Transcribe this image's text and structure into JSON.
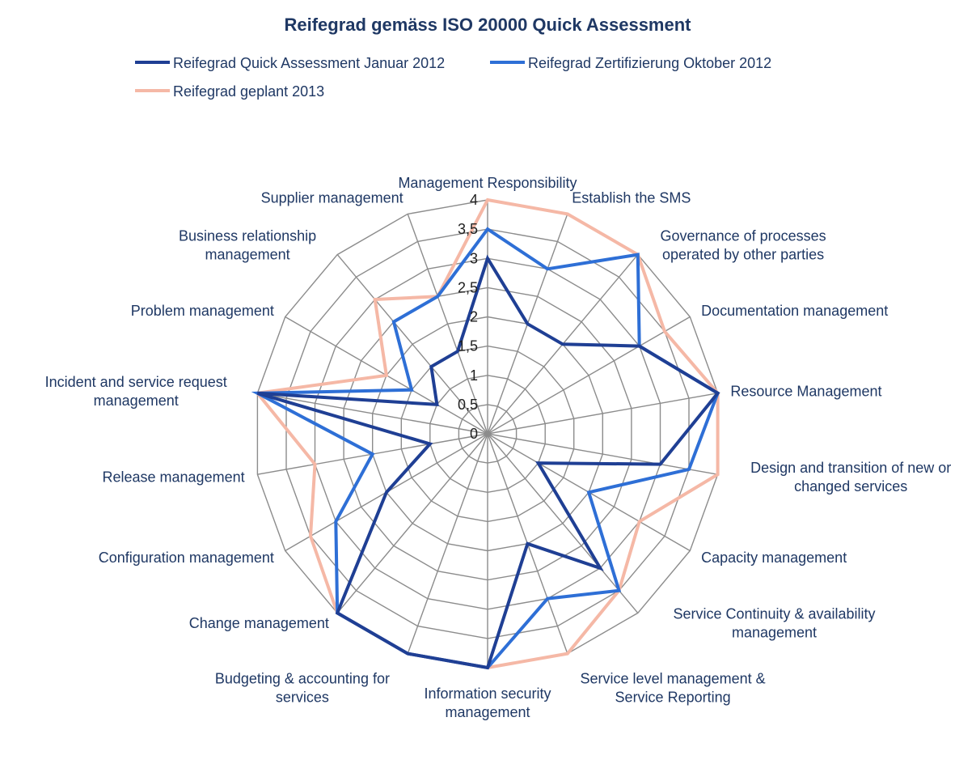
{
  "chart_data": {
    "type": "radar",
    "title": "Reifegrad gemäss ISO 20000 Quick Assessment",
    "legend_position": "top",
    "grid": true,
    "rlim": [
      0,
      4
    ],
    "ticks": [
      "0",
      "0,5",
      "1",
      "1,5",
      "2",
      "2,5",
      "3",
      "3,5",
      "4"
    ],
    "categories": [
      "Management Responsibility",
      "Establish the SMS",
      "Governance of processes operated by other parties",
      "Documentation management",
      "Resource Management",
      "Design and transition of new or changed services",
      "Capacity management",
      "Service Continuity & availability management",
      "Service level management & Service Reporting",
      "Information security management",
      "Budgeting & accounting for services",
      "Change management",
      "Configuration management",
      "Release management",
      "Incident and service request management",
      "Problem management",
      "Business relationship management",
      "Supplier management"
    ],
    "series": [
      {
        "name": "Reifegrad Quick Assessment Januar 2012",
        "color": "#1f3f94",
        "values": [
          3,
          2,
          2,
          3,
          4,
          3,
          1,
          3,
          2,
          4,
          4,
          4,
          2,
          1,
          4,
          1,
          1.5,
          1.5
        ]
      },
      {
        "name": "Reifegrad Zertifizierung Oktober 2012",
        "color": "#2e6fd6",
        "values": [
          3.5,
          3,
          4,
          3,
          4,
          3.5,
          2,
          3.5,
          3,
          4,
          4,
          4,
          3,
          2,
          4,
          1.5,
          2.5,
          2.5
        ]
      },
      {
        "name": "Reifegrad geplant 2013",
        "color": "#f5b8a6",
        "values": [
          4,
          4,
          4,
          3.5,
          4,
          4,
          3,
          3.5,
          4,
          4,
          4,
          4,
          3.5,
          3,
          4,
          2,
          3,
          2.5
        ]
      }
    ]
  }
}
